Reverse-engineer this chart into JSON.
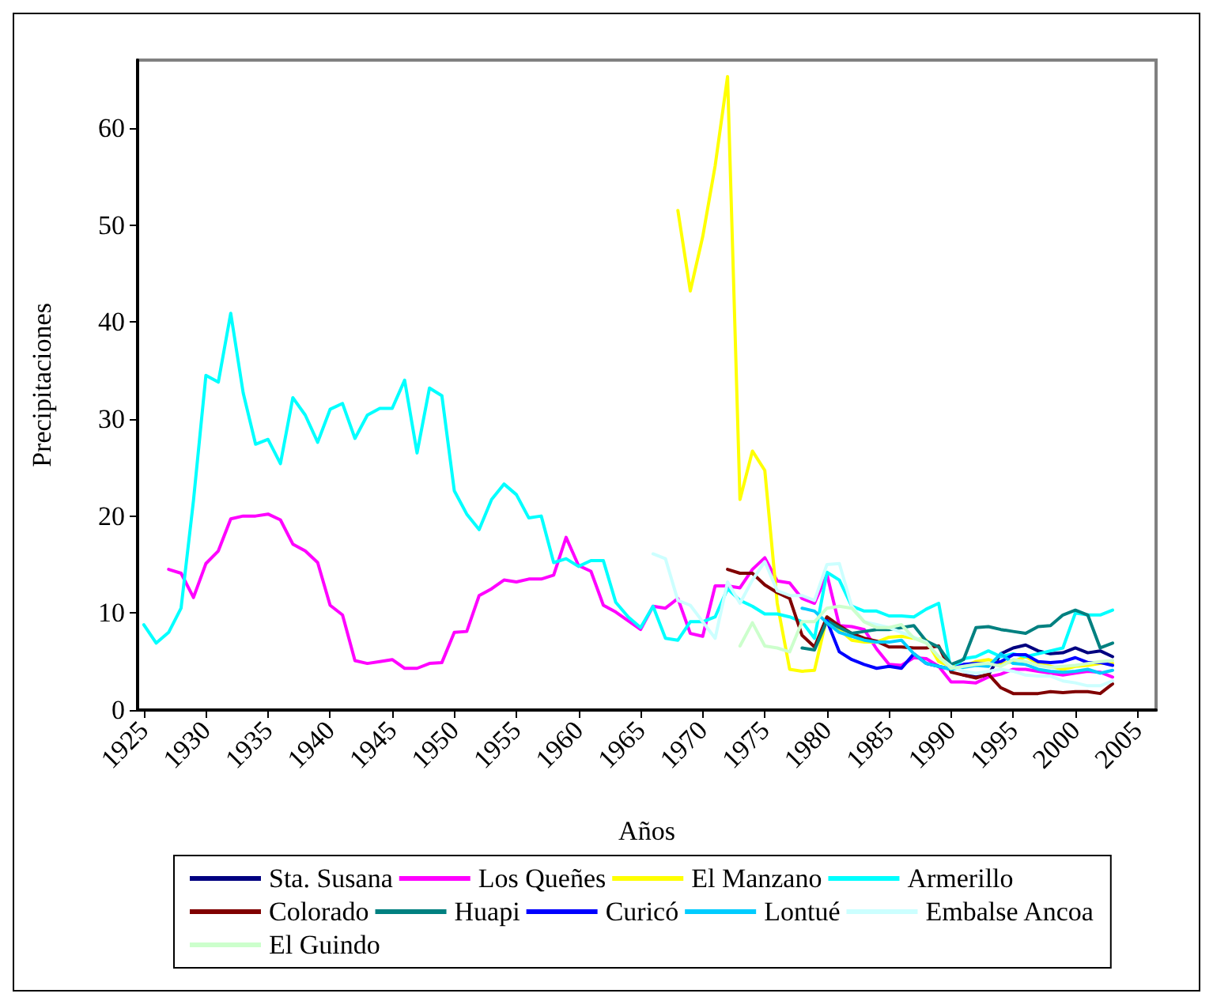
{
  "chart_data": {
    "type": "line",
    "xlabel": "Años",
    "ylabel": "Precipitaciones",
    "x": [
      1925,
      1926,
      1927,
      1928,
      1929,
      1930,
      1931,
      1932,
      1933,
      1934,
      1935,
      1936,
      1937,
      1938,
      1939,
      1940,
      1941,
      1942,
      1943,
      1944,
      1945,
      1946,
      1947,
      1948,
      1949,
      1950,
      1951,
      1952,
      1953,
      1954,
      1955,
      1956,
      1957,
      1958,
      1959,
      1960,
      1961,
      1962,
      1963,
      1964,
      1965,
      1966,
      1967,
      1968,
      1969,
      1970,
      1971,
      1972,
      1973,
      1974,
      1975,
      1976,
      1977,
      1978,
      1979,
      1980,
      1981,
      1982,
      1983,
      1984,
      1985,
      1986,
      1987,
      1988,
      1989,
      1990,
      1991,
      1992,
      1993,
      1994,
      1995,
      1996,
      1997,
      1998,
      1999,
      2000,
      2001,
      2002,
      2003
    ],
    "xlim": [
      1924.5,
      2006.5
    ],
    "xticks": [
      1925,
      1930,
      1935,
      1940,
      1945,
      1950,
      1955,
      1960,
      1965,
      1970,
      1975,
      1980,
      1985,
      1990,
      1995,
      2000,
      2005
    ],
    "ylim": [
      0,
      67
    ],
    "yticks": [
      0,
      10,
      20,
      30,
      40,
      50,
      60
    ],
    "grid": false,
    "legend": "bottom",
    "marker": "none",
    "line_style": "solid",
    "series": [
      {
        "name": "Sta. Susana",
        "color": "#000080",
        "values": [
          null,
          null,
          null,
          null,
          null,
          null,
          null,
          null,
          null,
          null,
          null,
          null,
          null,
          null,
          null,
          null,
          null,
          null,
          null,
          null,
          null,
          null,
          null,
          null,
          null,
          null,
          null,
          null,
          null,
          null,
          null,
          null,
          null,
          null,
          null,
          null,
          null,
          null,
          null,
          null,
          null,
          null,
          null,
          null,
          null,
          null,
          null,
          null,
          null,
          null,
          null,
          null,
          null,
          null,
          null,
          null,
          null,
          null,
          null,
          null,
          null,
          null,
          null,
          null,
          null,
          null,
          3.6,
          3.4,
          3.6,
          5.8,
          6.4,
          6.7,
          6.1,
          5.8,
          5.9,
          6.4,
          5.9,
          6.1,
          5.5
        ]
      },
      {
        "name": "Los Queñes",
        "color": "#ff00ff",
        "values": [
          null,
          null,
          14.5,
          14.1,
          11.6,
          15.1,
          16.4,
          19.7,
          20.0,
          20.0,
          20.2,
          19.6,
          17.1,
          16.4,
          15.2,
          10.8,
          9.8,
          5.1,
          4.8,
          5.0,
          5.2,
          4.3,
          4.3,
          4.8,
          4.9,
          8.0,
          8.1,
          11.8,
          12.5,
          13.4,
          13.2,
          13.5,
          13.5,
          13.9,
          17.8,
          14.9,
          14.3,
          10.8,
          10.1,
          9.2,
          8.3,
          10.7,
          10.5,
          11.5,
          7.9,
          7.6,
          12.8,
          12.8,
          12.6,
          14.5,
          15.7,
          13.3,
          13.1,
          11.5,
          11.0,
          14.0,
          8.7,
          8.6,
          8.3,
          6.3,
          4.7,
          4.6,
          5.4,
          5.3,
          4.5,
          2.9,
          2.9,
          2.8,
          3.4,
          3.7,
          4.2,
          4.2,
          4.0,
          3.8,
          3.6,
          3.8,
          4.0,
          3.9,
          3.4
        ]
      },
      {
        "name": "El Manzano",
        "color": "#ffff00",
        "values": [
          null,
          null,
          null,
          null,
          null,
          null,
          null,
          null,
          null,
          null,
          null,
          null,
          null,
          null,
          null,
          null,
          null,
          null,
          null,
          null,
          null,
          null,
          null,
          null,
          null,
          null,
          null,
          null,
          null,
          null,
          null,
          null,
          null,
          null,
          null,
          null,
          null,
          null,
          null,
          null,
          null,
          null,
          null,
          51.5,
          43.2,
          48.8,
          56.1,
          65.3,
          21.7,
          26.7,
          24.7,
          11.0,
          4.2,
          4.0,
          4.1,
          9.6,
          8.3,
          7.2,
          7.0,
          7.0,
          7.5,
          7.6,
          7.4,
          7.2,
          5.0,
          4.5,
          4.5,
          5.0,
          5.2,
          4.8,
          5.0,
          5.5,
          4.8,
          4.5,
          4.2,
          4.5,
          4.6,
          4.8,
          4.8
        ]
      },
      {
        "name": "Armerillo",
        "color": "#00ffff",
        "values": [
          8.8,
          6.9,
          8.0,
          10.5,
          21.6,
          34.5,
          33.8,
          40.9,
          32.7,
          27.4,
          27.9,
          25.4,
          32.2,
          30.4,
          27.6,
          31.0,
          31.6,
          28.0,
          30.4,
          31.1,
          31.1,
          34.0,
          26.5,
          33.2,
          32.4,
          22.6,
          20.2,
          18.6,
          21.7,
          23.3,
          22.2,
          19.8,
          20.0,
          15.2,
          15.6,
          14.8,
          15.4,
          15.4,
          11.1,
          9.6,
          8.5,
          10.7,
          7.4,
          7.2,
          9.1,
          9.1,
          9.6,
          12.5,
          11.3,
          10.7,
          9.9,
          9.9,
          9.6,
          9.1,
          7.4,
          14.2,
          13.4,
          10.7,
          10.2,
          10.2,
          9.7,
          9.7,
          9.6,
          10.4,
          11.0,
          4.0,
          5.3,
          5.5,
          6.1,
          5.5,
          5.8,
          5.5,
          5.8,
          6.1,
          6.4,
          10.0,
          9.8,
          9.8,
          10.3
        ]
      },
      {
        "name": "Colorado",
        "color": "#800000",
        "values": [
          null,
          null,
          null,
          null,
          null,
          null,
          null,
          null,
          null,
          null,
          null,
          null,
          null,
          null,
          null,
          null,
          null,
          null,
          null,
          null,
          null,
          null,
          null,
          null,
          null,
          null,
          null,
          null,
          null,
          null,
          null,
          null,
          null,
          null,
          null,
          null,
          null,
          null,
          null,
          null,
          null,
          null,
          null,
          null,
          null,
          null,
          null,
          14.5,
          14.1,
          14.1,
          12.9,
          12.1,
          11.5,
          7.7,
          6.5,
          9.6,
          8.7,
          7.9,
          7.4,
          7.1,
          6.5,
          6.5,
          6.4,
          6.4,
          6.6,
          3.9,
          3.6,
          3.3,
          3.7,
          2.3,
          1.7,
          1.7,
          1.7,
          1.9,
          1.8,
          1.9,
          1.9,
          1.7,
          2.7
        ]
      },
      {
        "name": "Huapi",
        "color": "#008080",
        "values": [
          null,
          null,
          null,
          null,
          null,
          null,
          null,
          null,
          null,
          null,
          null,
          null,
          null,
          null,
          null,
          null,
          null,
          null,
          null,
          null,
          null,
          null,
          null,
          null,
          null,
          null,
          null,
          null,
          null,
          null,
          null,
          null,
          null,
          null,
          null,
          null,
          null,
          null,
          null,
          null,
          null,
          null,
          null,
          null,
          null,
          null,
          null,
          null,
          null,
          null,
          null,
          null,
          null,
          6.4,
          6.2,
          9.2,
          8.5,
          7.9,
          8.1,
          8.3,
          8.3,
          8.5,
          8.7,
          7.1,
          6.5,
          4.7,
          5.2,
          8.5,
          8.6,
          8.3,
          8.1,
          7.9,
          8.6,
          8.7,
          9.8,
          10.3,
          9.8,
          6.4,
          6.9
        ]
      },
      {
        "name": "Curicó",
        "color": "#0000ff",
        "values": [
          null,
          null,
          null,
          null,
          null,
          null,
          null,
          null,
          null,
          null,
          null,
          null,
          null,
          null,
          null,
          null,
          null,
          null,
          null,
          null,
          null,
          null,
          null,
          null,
          null,
          null,
          null,
          null,
          null,
          null,
          null,
          null,
          null,
          null,
          null,
          null,
          null,
          null,
          null,
          null,
          null,
          null,
          null,
          null,
          null,
          null,
          null,
          null,
          null,
          null,
          null,
          null,
          null,
          null,
          null,
          9.2,
          6.0,
          5.2,
          4.7,
          4.3,
          4.5,
          4.3,
          5.8,
          4.8,
          4.5,
          4.2,
          4.7,
          4.8,
          4.7,
          5.0,
          5.7,
          5.7,
          5.0,
          4.9,
          5.0,
          5.4,
          4.9,
          4.9,
          4.6
        ]
      },
      {
        "name": "Lontué",
        "color": "#00ccff",
        "values": [
          null,
          null,
          null,
          null,
          null,
          null,
          null,
          null,
          null,
          null,
          null,
          null,
          null,
          null,
          null,
          null,
          null,
          null,
          null,
          null,
          null,
          null,
          null,
          null,
          null,
          null,
          null,
          null,
          null,
          null,
          null,
          null,
          null,
          null,
          null,
          null,
          null,
          null,
          null,
          null,
          null,
          null,
          null,
          null,
          null,
          null,
          null,
          null,
          null,
          null,
          null,
          null,
          null,
          10.5,
          10.2,
          9.0,
          8.0,
          7.6,
          7.2,
          7.0,
          7.0,
          7.2,
          5.8,
          4.8,
          4.5,
          4.2,
          4.4,
          4.6,
          4.5,
          5.8,
          4.8,
          4.7,
          4.2,
          4.0,
          3.9,
          4.0,
          4.2,
          3.8,
          4.1
        ]
      },
      {
        "name": "Embalse Ancoa",
        "color": "#ccffff",
        "values": [
          null,
          null,
          null,
          null,
          null,
          null,
          null,
          null,
          null,
          null,
          null,
          null,
          null,
          null,
          null,
          null,
          null,
          null,
          null,
          null,
          null,
          null,
          null,
          null,
          null,
          null,
          null,
          null,
          null,
          null,
          null,
          null,
          null,
          null,
          null,
          null,
          null,
          null,
          null,
          null,
          null,
          16.1,
          15.6,
          11.3,
          10.8,
          9.1,
          7.4,
          13.2,
          11.0,
          13.4,
          15.3,
          12.3,
          11.8,
          11.8,
          11.3,
          15.0,
          15.1,
          10.7,
          9.1,
          8.8,
          8.5,
          8.0,
          7.5,
          7.0,
          5.5,
          4.5,
          4.0,
          3.8,
          4.0,
          4.2,
          4.0,
          3.6,
          3.5,
          3.5,
          3.0,
          2.8,
          2.5,
          2.5,
          3.0
        ]
      },
      {
        "name": "El Guindo",
        "color": "#ccffcc",
        "values": [
          null,
          null,
          null,
          null,
          null,
          null,
          null,
          null,
          null,
          null,
          null,
          null,
          null,
          null,
          null,
          null,
          null,
          null,
          null,
          null,
          null,
          null,
          null,
          null,
          null,
          null,
          null,
          null,
          null,
          null,
          null,
          null,
          null,
          null,
          null,
          null,
          null,
          null,
          null,
          null,
          null,
          null,
          null,
          null,
          null,
          null,
          null,
          null,
          6.6,
          9.0,
          6.6,
          6.4,
          6.0,
          9.1,
          9.1,
          10.5,
          10.7,
          10.5,
          9.1,
          8.5,
          8.5,
          8.8,
          7.4,
          6.9,
          5.5,
          4.3,
          4.5,
          4.7,
          4.8,
          4.5,
          5.2,
          5.0,
          4.6,
          4.4,
          4.5,
          4.6,
          4.8,
          5.0,
          5.1
        ]
      }
    ]
  }
}
